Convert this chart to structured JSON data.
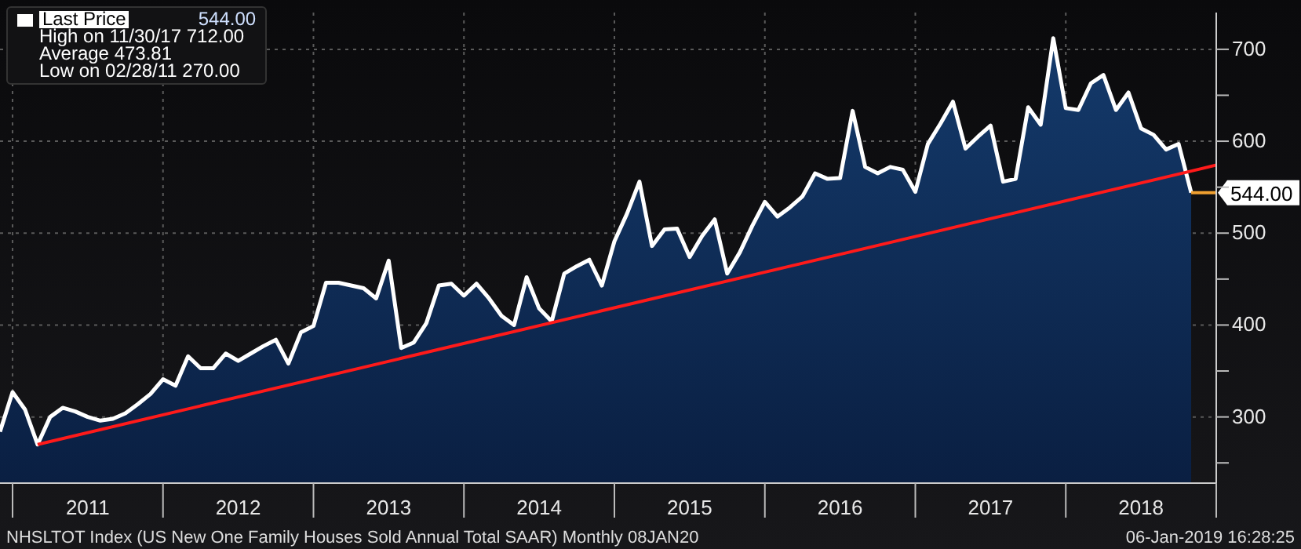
{
  "chart_data": {
    "type": "area",
    "x": [
      "2010-11",
      "2010-12",
      "2011-01",
      "2011-02",
      "2011-03",
      "2011-04",
      "2011-05",
      "2011-06",
      "2011-07",
      "2011-08",
      "2011-09",
      "2011-10",
      "2011-11",
      "2011-12",
      "2012-01",
      "2012-02",
      "2012-03",
      "2012-04",
      "2012-05",
      "2012-06",
      "2012-07",
      "2012-08",
      "2012-09",
      "2012-10",
      "2012-11",
      "2012-12",
      "2013-01",
      "2013-02",
      "2013-03",
      "2013-04",
      "2013-05",
      "2013-06",
      "2013-07",
      "2013-08",
      "2013-09",
      "2013-10",
      "2013-11",
      "2013-12",
      "2014-01",
      "2014-02",
      "2014-03",
      "2014-04",
      "2014-05",
      "2014-06",
      "2014-07",
      "2014-08",
      "2014-09",
      "2014-10",
      "2014-11",
      "2014-12",
      "2015-01",
      "2015-02",
      "2015-03",
      "2015-04",
      "2015-05",
      "2015-06",
      "2015-07",
      "2015-08",
      "2015-09",
      "2015-10",
      "2015-11",
      "2015-12",
      "2016-01",
      "2016-02",
      "2016-03",
      "2016-04",
      "2016-05",
      "2016-06",
      "2016-07",
      "2016-08",
      "2016-09",
      "2016-10",
      "2016-11",
      "2016-12",
      "2017-01",
      "2017-02",
      "2017-03",
      "2017-04",
      "2017-05",
      "2017-06",
      "2017-07",
      "2017-08",
      "2017-09",
      "2017-10",
      "2017-11",
      "2017-12",
      "2018-01",
      "2018-02",
      "2018-03",
      "2018-04",
      "2018-05",
      "2018-06",
      "2018-07",
      "2018-08",
      "2018-09",
      "2018-10"
    ],
    "series": [
      {
        "name": "Last Price",
        "color": "#ffffff",
        "values": [
          284,
          327,
          308,
          270,
          300,
          310,
          306,
          300,
          296,
          298,
          304,
          314,
          325,
          341,
          334,
          366,
          353,
          353,
          369,
          361,
          369,
          377,
          384,
          358,
          392,
          399,
          446,
          446,
          443,
          440,
          429,
          470,
          375,
          381,
          402,
          443,
          445,
          432,
          445,
          429,
          410,
          400,
          452,
          418,
          404,
          456,
          464,
          471,
          443,
          491,
          521,
          556,
          486,
          504,
          505,
          474,
          497,
          515,
          456,
          479,
          508,
          534,
          518,
          528,
          540,
          565,
          559,
          560,
          633,
          572,
          565,
          572,
          569,
          545,
          597,
          619,
          643,
          592,
          605,
          617,
          556,
          559,
          637,
          618,
          712,
          636,
          634,
          663,
          672,
          634,
          653,
          614,
          607,
          591,
          597,
          544
        ]
      },
      {
        "type": "line",
        "color": "#ff1a1a",
        "x": [
          "2011-02",
          "2018-12"
        ],
        "values": [
          270,
          574
        ]
      }
    ],
    "xlim": [
      "2010-11",
      "2018-12"
    ],
    "xticks": [
      {
        "value": "2010-12",
        "label": null
      },
      {
        "value": "2011-06",
        "label": "2011"
      },
      {
        "value": "2011-12",
        "label": null
      },
      {
        "value": "2012-06",
        "label": "2012"
      },
      {
        "value": "2012-12",
        "label": null
      },
      {
        "value": "2013-06",
        "label": "2013"
      },
      {
        "value": "2013-12",
        "label": null
      },
      {
        "value": "2014-06",
        "label": "2014"
      },
      {
        "value": "2014-12",
        "label": null
      },
      {
        "value": "2015-06",
        "label": "2015"
      },
      {
        "value": "2015-12",
        "label": null
      },
      {
        "value": "2016-06",
        "label": "2016"
      },
      {
        "value": "2016-12",
        "label": null
      },
      {
        "value": "2017-06",
        "label": "2017"
      },
      {
        "value": "2017-12",
        "label": null
      },
      {
        "value": "2018-06",
        "label": "2018"
      },
      {
        "value": "2018-12",
        "label": null
      }
    ],
    "ylim": [
      228,
      740
    ],
    "yticks": [
      {
        "value": 250,
        "label": null
      },
      300,
      {
        "value": 350,
        "label": null
      },
      400,
      {
        "value": 450,
        "label": null
      },
      500,
      {
        "value": 550,
        "label": null
      },
      600,
      {
        "value": 650,
        "label": null
      },
      700
    ],
    "grid": true,
    "legend": "top left",
    "ref_lines": [
      {
        "axis": "y",
        "value": 544,
        "label": "544.00",
        "color": "#f0a030"
      }
    ],
    "annotations": [
      "544.00",
      "High on 11/30/17 712.00",
      "Average 473.81",
      "Low on 02/28/11 270.00",
      "NHSLTOT Index (US New One Family Houses Sold Annual Total SAAR) Monthly 08JAN20",
      "06-Jan-2019 16:28:25"
    ]
  }
}
